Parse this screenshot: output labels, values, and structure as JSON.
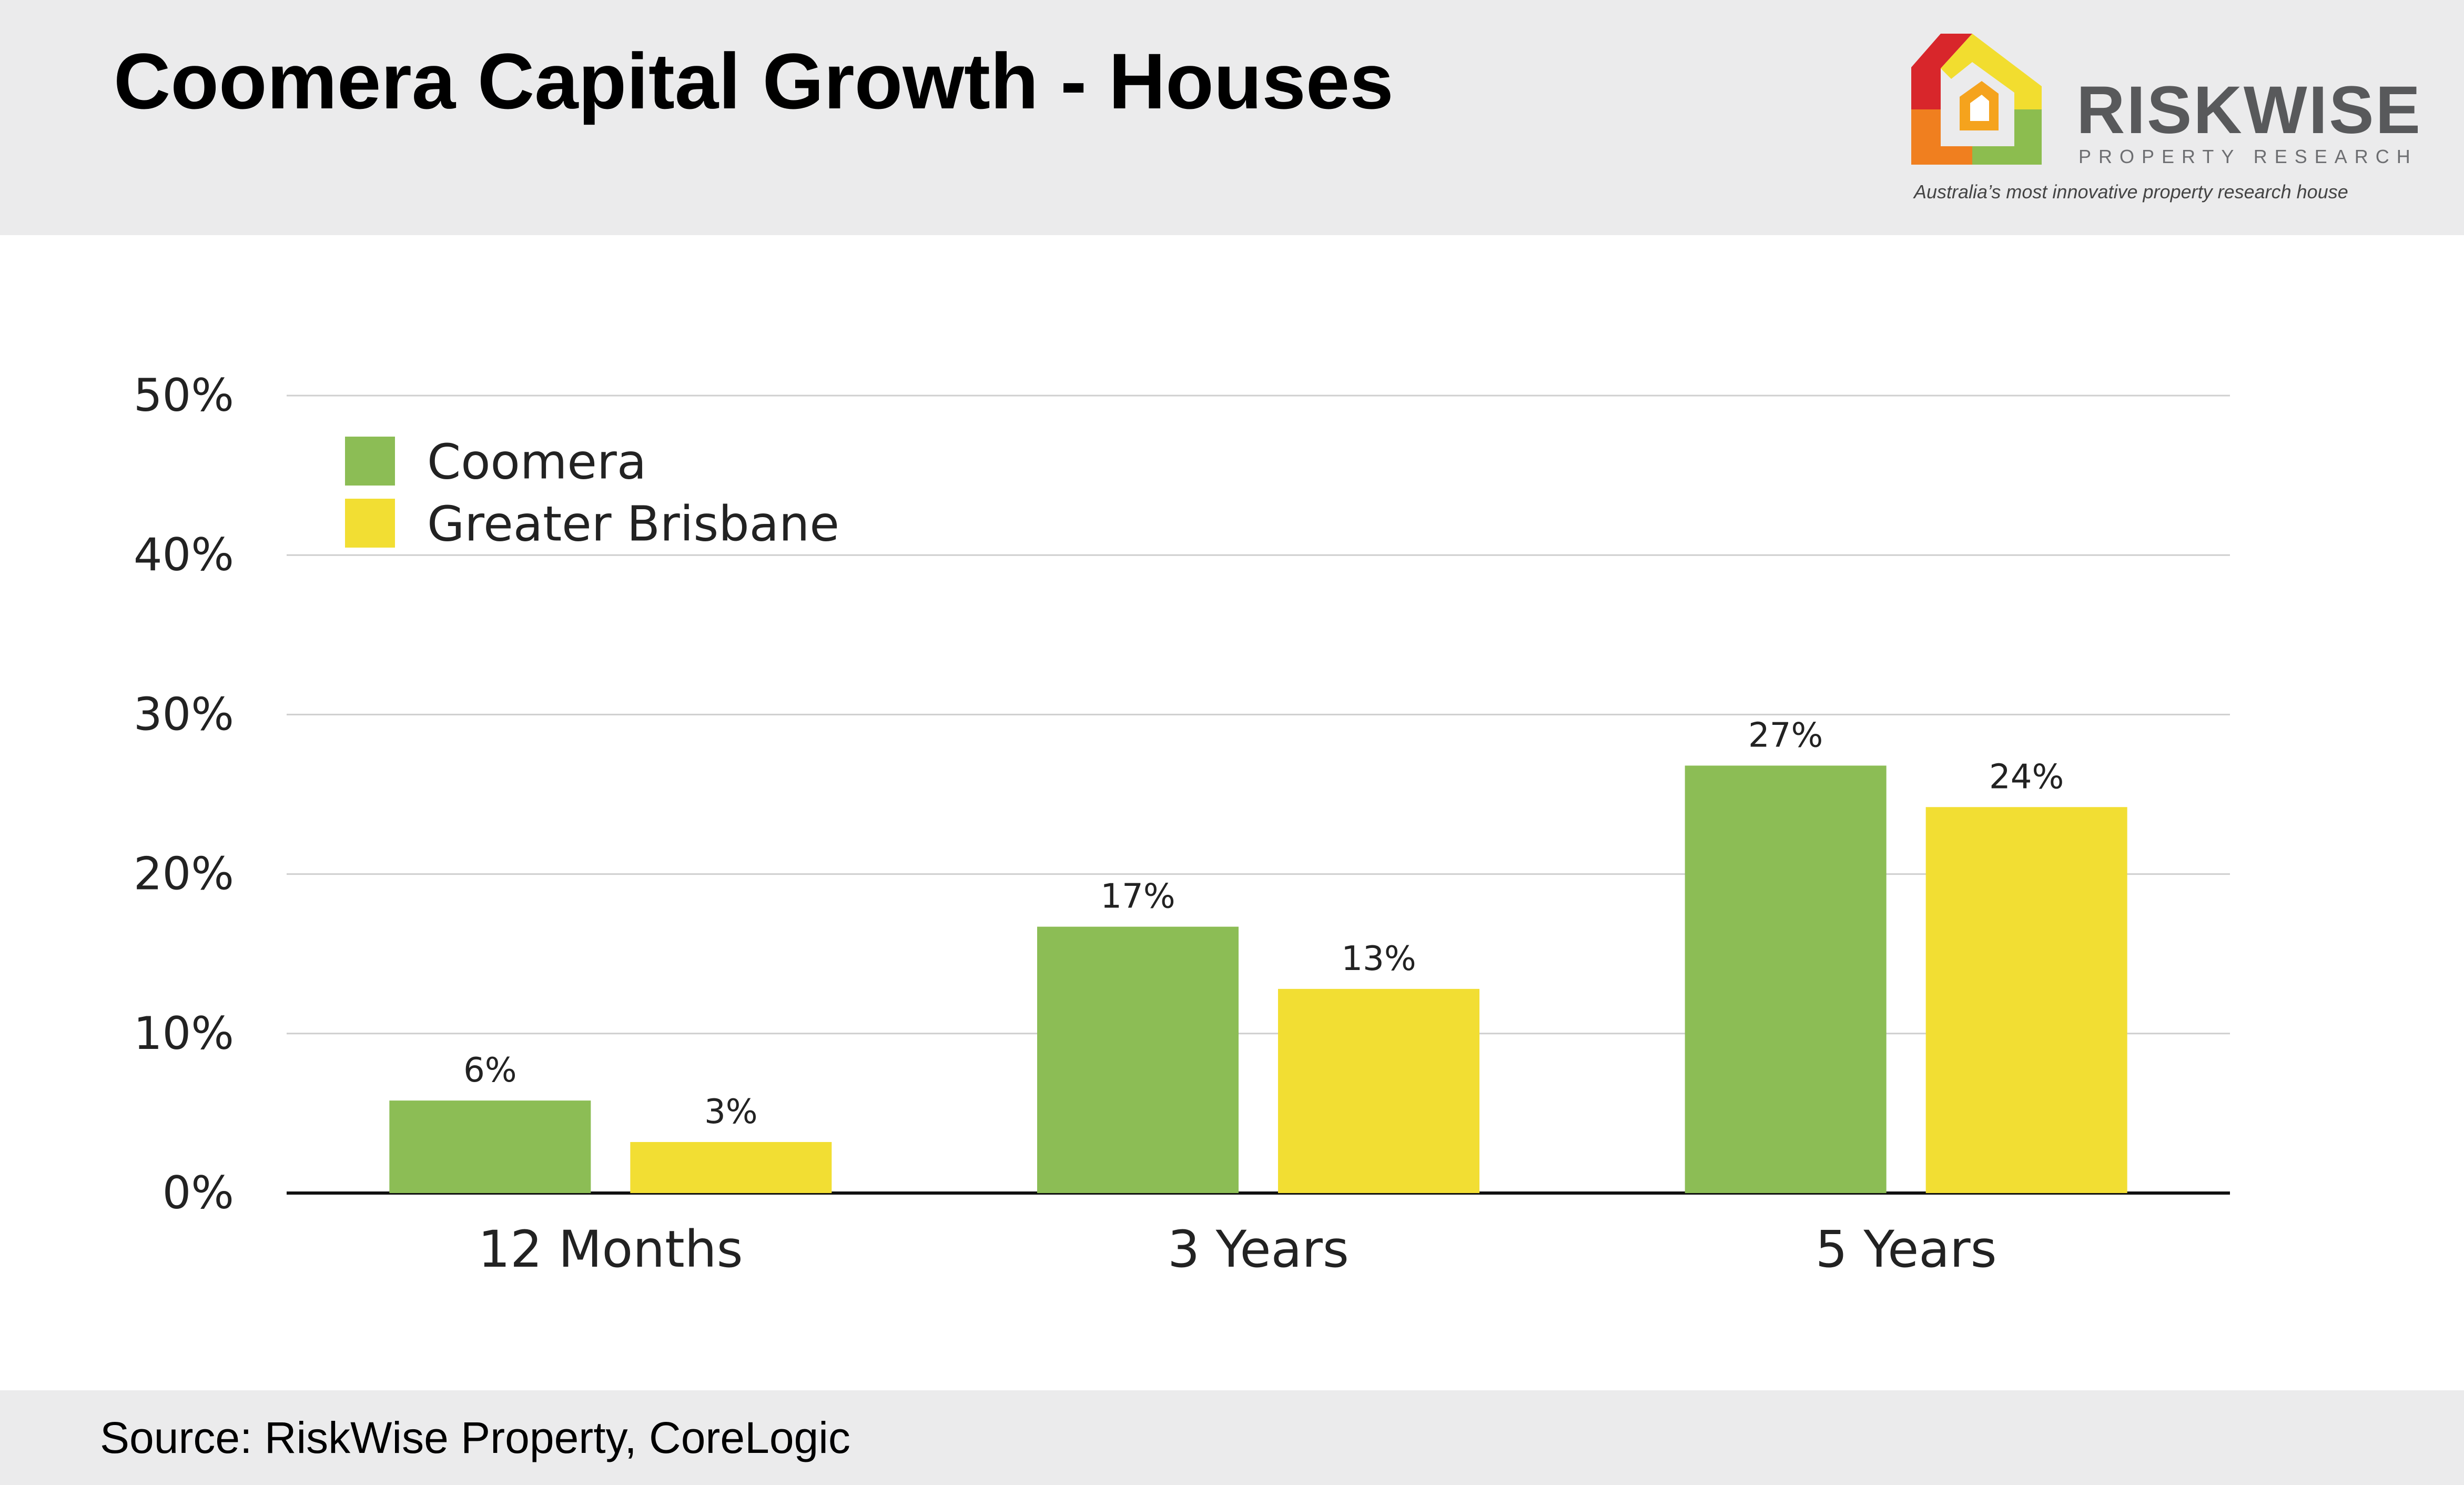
{
  "header": {
    "title": "Coomera Capital Growth - Houses"
  },
  "logo": {
    "name": "RISKWISE",
    "subtitle": "PROPERTY RESEARCH",
    "tagline": "Australia’s most innovative property research house",
    "icon": "house-logo-icon",
    "colors": [
      "#d8262b",
      "#f07f1f",
      "#f2dd2f",
      "#8cbd4f"
    ]
  },
  "footer": {
    "source": "Source: RiskWise Property, CoreLogic"
  },
  "chart_data": {
    "type": "bar",
    "title": "",
    "xlabel": "",
    "ylabel": "",
    "ylim": [
      0,
      50
    ],
    "yticks": [
      "0%",
      "10%",
      "20%",
      "30%",
      "40%",
      "50%"
    ],
    "ytick_values": [
      0,
      10,
      20,
      30,
      40,
      50
    ],
    "grid": true,
    "legend_position": "top-left",
    "categories": [
      "12 Months",
      "3 Years",
      "5 Years"
    ],
    "series": [
      {
        "name": "Coomera",
        "color": "#8cbd55",
        "values": [
          6,
          17,
          27
        ],
        "labels": [
          "6%",
          "17%",
          "27%"
        ],
        "plotted": [
          5.8,
          16.7,
          26.8
        ]
      },
      {
        "name": "Greater Brisbane",
        "color": "#f2de33",
        "values": [
          3,
          13,
          24
        ],
        "labels": [
          "3%",
          "13%",
          "24%"
        ],
        "plotted": [
          3.2,
          12.8,
          24.2
        ]
      }
    ]
  }
}
